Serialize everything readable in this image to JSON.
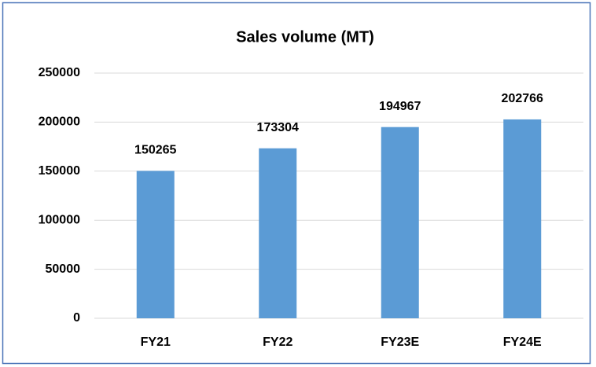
{
  "chart_data": {
    "type": "bar",
    "title": "Sales volume (MT)",
    "categories": [
      "FY21",
      "FY22",
      "FY23E",
      "FY24E"
    ],
    "values": [
      150265,
      173304,
      194967,
      202766
    ],
    "color": "#5b9bd5",
    "ylim": [
      0,
      250000
    ],
    "yticks": [
      0,
      50000,
      100000,
      150000,
      200000,
      250000
    ],
    "grid": true
  }
}
